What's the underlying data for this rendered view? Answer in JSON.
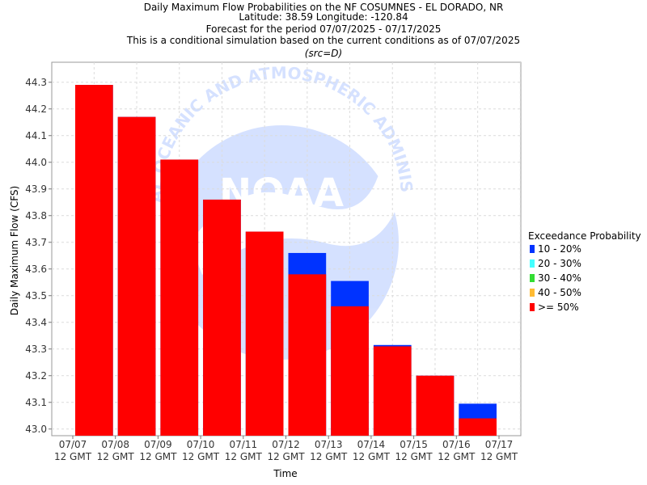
{
  "title_lines": [
    "Daily Maximum Flow Probabilities on the NF COSUMNES - EL DORADO, NR",
    "Latitude: 38.59 Longitude: -120.84",
    "Forecast for the period 07/07/2025 - 07/17/2025",
    "This is a conditional simulation based on the current conditions as of 07/07/2025",
    "(src=D)"
  ],
  "watermark": {
    "logo_text": "NOAA",
    "ring_text": "NATIONAL OCEANIC AND ATMOSPHERIC ADMINISTRATION"
  },
  "legend": {
    "title": "Exceedance Probability",
    "items": [
      {
        "label": "10 - 20%",
        "color": "#0033ff"
      },
      {
        "label": "20 - 30%",
        "color": "#44ffff"
      },
      {
        "label": "30 - 40%",
        "color": "#33dd33"
      },
      {
        "label": "40 - 50%",
        "color": "#ffbb33"
      },
      {
        "label": ">= 50%",
        "color": "#ff0000"
      }
    ]
  },
  "chart_data": {
    "type": "bar",
    "title": "Daily Maximum Flow Probabilities on the NF COSUMNES - EL DORADO, NR",
    "xlabel": "Time",
    "ylabel": "Daily Maximum Flow (CFS)",
    "ylim": [
      42.975,
      44.375
    ],
    "yticks": [
      "43.0",
      "43.1",
      "43.2",
      "43.3",
      "43.4",
      "43.5",
      "43.6",
      "43.7",
      "43.8",
      "43.9",
      "44.0",
      "44.1",
      "44.2",
      "44.3"
    ],
    "xticks": [
      {
        "date": "07/07",
        "time": "12 GMT"
      },
      {
        "date": "07/08",
        "time": "12 GMT"
      },
      {
        "date": "07/09",
        "time": "12 GMT"
      },
      {
        "date": "07/10",
        "time": "12 GMT"
      },
      {
        "date": "07/11",
        "time": "12 GMT"
      },
      {
        "date": "07/12",
        "time": "12 GMT"
      },
      {
        "date": "07/13",
        "time": "12 GMT"
      },
      {
        "date": "07/14",
        "time": "12 GMT"
      },
      {
        "date": "07/15",
        "time": "12 GMT"
      },
      {
        "date": "07/16",
        "time": "12 GMT"
      },
      {
        "date": "07/17",
        "time": "12 GMT"
      }
    ],
    "grid": true,
    "legend_position": "right",
    "series": [
      {
        "name": ">= 50%",
        "color": "#ff0000",
        "values": [
          44.29,
          44.17,
          44.01,
          43.86,
          43.74,
          43.58,
          43.46,
          43.31,
          43.2,
          43.04
        ]
      },
      {
        "name": "10 - 20%",
        "color": "#0033ff",
        "values": [
          44.29,
          44.17,
          44.01,
          43.86,
          43.74,
          43.66,
          43.555,
          43.315,
          43.2,
          43.095
        ]
      }
    ]
  }
}
